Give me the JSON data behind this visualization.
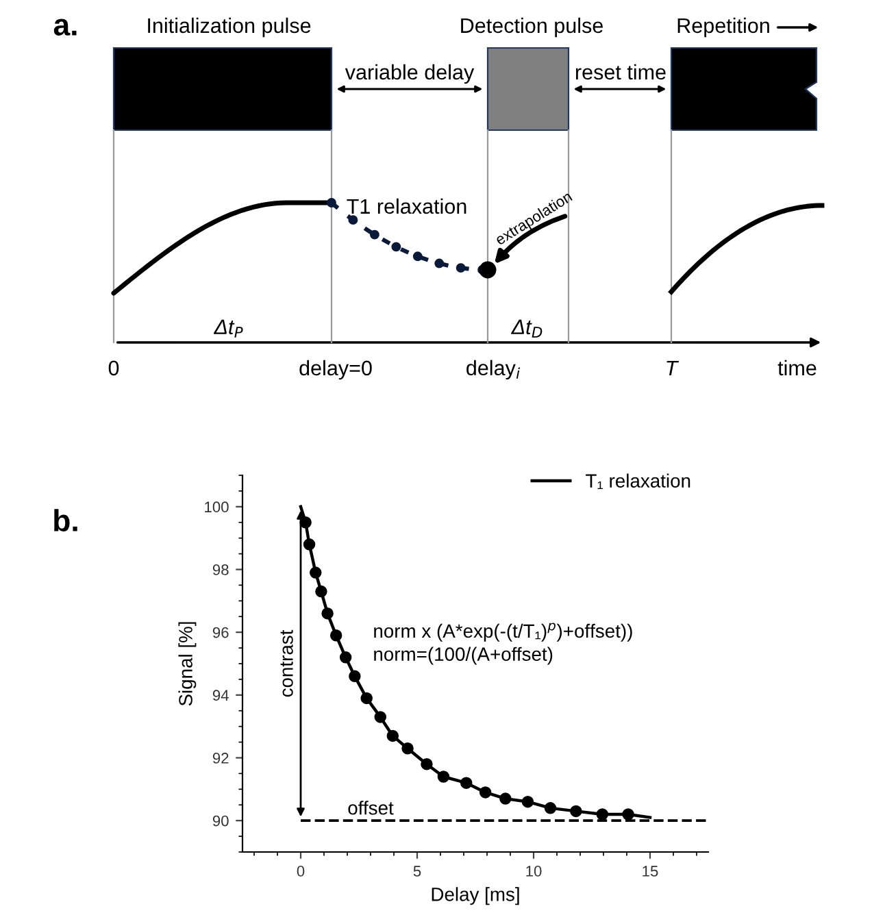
{
  "chart_data": [
    {
      "type": "other",
      "title": "a.",
      "annotations": [
        "Initialization pulse",
        "Detection pulse",
        "Repetition",
        "variable delay",
        "reset time",
        "T1 relaxation",
        "extrapolation",
        "Δt$_{P}$",
        "Δt$_{D}$",
        "0",
        "delay=0",
        "delay$_{i}$",
        "T",
        "time"
      ]
    },
    {
      "type": "scatter",
      "title": "b.",
      "xlabel": "Delay [ms]",
      "ylabel": "Signal [%]",
      "series": [
        {
          "type": "scatter",
          "color": "#000000",
          "marker": "circle",
          "x": [
            0.21,
            0.37,
            0.64,
            0.88,
            1.15,
            1.52,
            1.93,
            2.32,
            2.83,
            3.42,
            3.95,
            4.59,
            5.41,
            6.13,
            7.11,
            7.93,
            8.79,
            9.75,
            10.72,
            11.82,
            12.95,
            14.06
          ],
          "values": [
            99.5,
            98.8,
            97.9,
            97.3,
            96.6,
            95.9,
            95.2,
            94.6,
            93.9,
            93.3,
            92.7,
            92.3,
            91.8,
            91.4,
            91.2,
            90.9,
            90.7,
            90.6,
            90.4,
            90.3,
            90.2,
            90.2
          ]
        },
        {
          "type": "line",
          "name": "T₁ relaxation",
          "color": "#000000",
          "line_style": "solid",
          "x": [
            0,
            0.21,
            0.37,
            0.64,
            0.88,
            1.15,
            1.52,
            1.93,
            2.32,
            2.83,
            3.42,
            3.95,
            4.59,
            5.41,
            6.13,
            7.11,
            7.93,
            8.79,
            9.75,
            10.72,
            11.82,
            12.95,
            14.06,
            15
          ],
          "values": [
            100,
            99.5,
            98.8,
            97.9,
            97.3,
            96.6,
            95.9,
            95.2,
            94.6,
            93.9,
            93.3,
            92.7,
            92.3,
            91.8,
            91.4,
            91.2,
            90.9,
            90.7,
            90.6,
            90.4,
            90.3,
            90.2,
            90.2,
            90.1
          ]
        }
      ],
      "xlim": [
        -2.5,
        17.5
      ],
      "xticks": [
        0,
        5,
        10,
        15
      ],
      "ylim": [
        89,
        101
      ],
      "yticks": [
        90,
        92,
        94,
        96,
        98,
        100
      ],
      "ref_lines": [
        {
          "axis": "y",
          "value": 90,
          "label": "offset",
          "line_style": "dashed",
          "color": "#000000"
        }
      ],
      "annotations": [
        "norm x (A*exp(-(t/T₁)$^{p}$)+offset))",
        "norm=(100/(A+offset)",
        "contrast"
      ],
      "legend": "top right",
      "grid": false
    }
  ]
}
